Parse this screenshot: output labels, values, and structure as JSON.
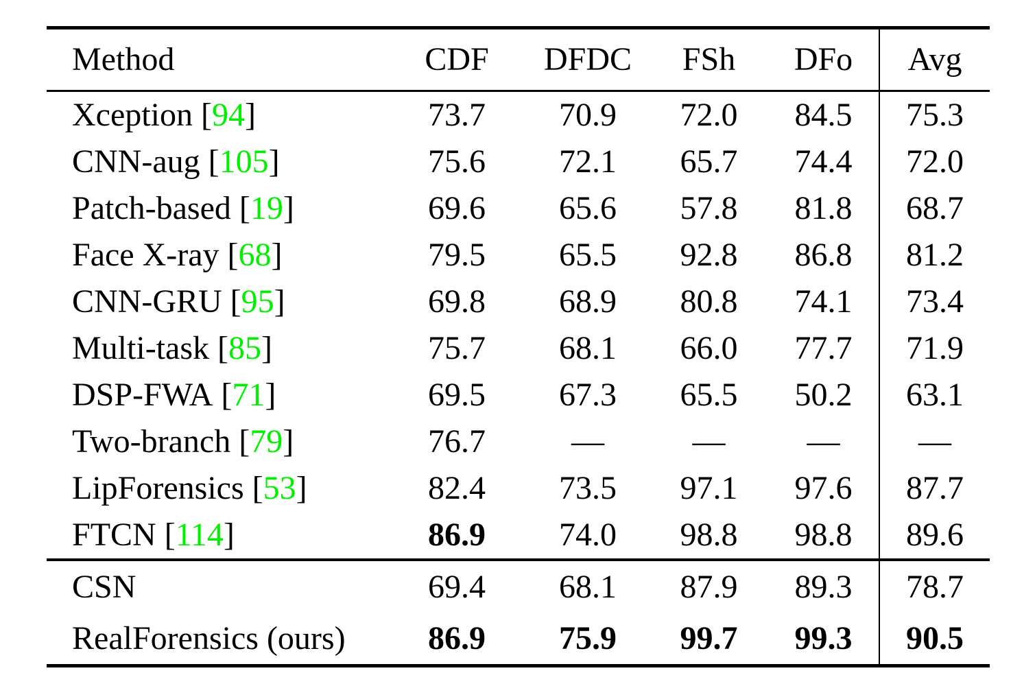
{
  "page": {
    "background": "#ffffff",
    "text_color": "#000000",
    "rule_color": "#000000"
  },
  "colors": {
    "citation_green": "#00F000"
  },
  "table": {
    "columns": [
      "Method",
      "CDF",
      "DFDC",
      "FSh",
      "DFo",
      "Avg"
    ],
    "citation_bracket_open": "[",
    "citation_bracket_close": "]",
    "missing_value": "—",
    "rows_main": [
      {
        "method": "Xception",
        "cite": "94",
        "values": [
          "73.7",
          "70.9",
          "72.0",
          "84.5",
          "75.3"
        ],
        "bold_indices": []
      },
      {
        "method": "CNN-aug",
        "cite": "105",
        "values": [
          "75.6",
          "72.1",
          "65.7",
          "74.4",
          "72.0"
        ],
        "bold_indices": []
      },
      {
        "method": "Patch-based",
        "cite": "19",
        "values": [
          "69.6",
          "65.6",
          "57.8",
          "81.8",
          "68.7"
        ],
        "bold_indices": []
      },
      {
        "method": "Face X-ray",
        "cite": "68",
        "values": [
          "79.5",
          "65.5",
          "92.8",
          "86.8",
          "81.2"
        ],
        "bold_indices": []
      },
      {
        "method": "CNN-GRU",
        "cite": "95",
        "values": [
          "69.8",
          "68.9",
          "80.8",
          "74.1",
          "73.4"
        ],
        "bold_indices": []
      },
      {
        "method": "Multi-task",
        "cite": "85",
        "values": [
          "75.7",
          "68.1",
          "66.0",
          "77.7",
          "71.9"
        ],
        "bold_indices": []
      },
      {
        "method": "DSP-FWA",
        "cite": "71",
        "values": [
          "69.5",
          "67.3",
          "65.5",
          "50.2",
          "63.1"
        ],
        "bold_indices": []
      },
      {
        "method": "Two-branch",
        "cite": "79",
        "values": [
          "76.7",
          "—",
          "—",
          "—",
          "—"
        ],
        "bold_indices": []
      },
      {
        "method": "LipForensics",
        "cite": "53",
        "values": [
          "82.4",
          "73.5",
          "97.1",
          "97.6",
          "87.7"
        ],
        "bold_indices": []
      },
      {
        "method": "FTCN",
        "cite": "114",
        "values": [
          "86.9",
          "74.0",
          "98.8",
          "98.8",
          "89.6"
        ],
        "bold_indices": [
          0
        ]
      }
    ],
    "rows_bottom": [
      {
        "method": "CSN",
        "values": [
          "69.4",
          "68.1",
          "87.9",
          "89.3",
          "78.7"
        ],
        "bold_indices": []
      },
      {
        "method": "RealForensics (ours)",
        "values": [
          "86.9",
          "75.9",
          "99.7",
          "99.3",
          "90.5"
        ],
        "bold_indices": [
          0,
          1,
          2,
          3,
          4
        ]
      }
    ]
  }
}
